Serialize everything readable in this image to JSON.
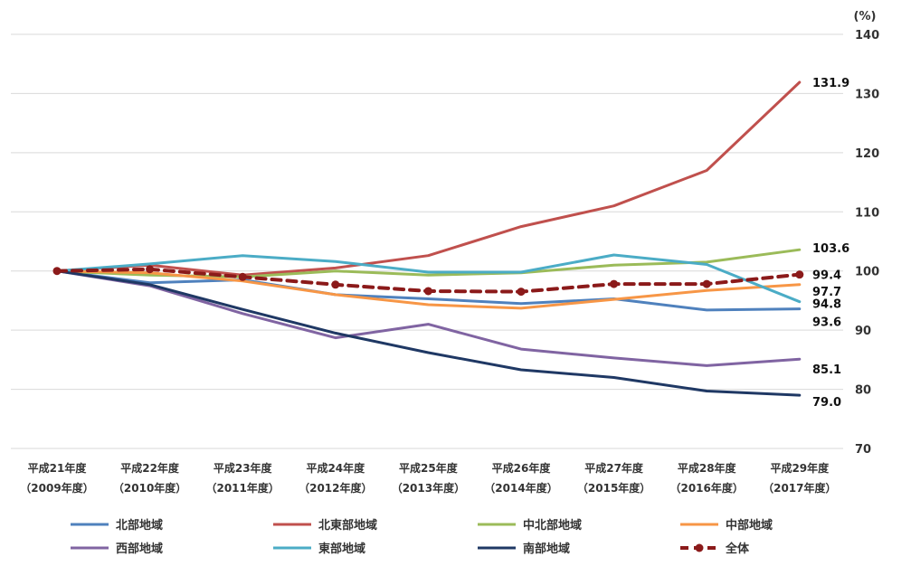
{
  "chart_data": {
    "type": "line",
    "y_unit": "(%)",
    "ylim": [
      70,
      140
    ],
    "yticks": [
      70,
      80,
      90,
      100,
      110,
      120,
      130,
      140
    ],
    "grid": true,
    "legend_position": "bottom",
    "categories": [
      {
        "line1": "平成21年度",
        "line2": "（2009年度）"
      },
      {
        "line1": "平成22年度",
        "line2": "（2010年度）"
      },
      {
        "line1": "平成23年度",
        "line2": "（2011年度）"
      },
      {
        "line1": "平成24年度",
        "line2": "（2012年度）"
      },
      {
        "line1": "平成25年度",
        "line2": "（2013年度）"
      },
      {
        "line1": "平成26年度",
        "line2": "（2014年度）"
      },
      {
        "line1": "平成27年度",
        "line2": "（2015年度）"
      },
      {
        "line1": "平成28年度",
        "line2": "（2016年度）"
      },
      {
        "line1": "平成29年度",
        "line2": "（2017年度）"
      }
    ],
    "series": [
      {
        "name": "北部地域",
        "color": "#4f81bd",
        "dashed": false,
        "markers": false,
        "values": [
          100,
          98.0,
          98.5,
          96.0,
          95.3,
          94.5,
          95.3,
          93.4,
          93.6
        ],
        "end_label": "93.6"
      },
      {
        "name": "北東部地域",
        "color": "#c0504d",
        "dashed": false,
        "markers": false,
        "values": [
          100,
          101.0,
          99.3,
          100.5,
          102.6,
          107.5,
          111.0,
          117.0,
          131.9
        ],
        "end_label": "131.9"
      },
      {
        "name": "中北部地域",
        "color": "#9bbb59",
        "dashed": false,
        "markers": false,
        "values": [
          100,
          99.3,
          99.0,
          100.0,
          99.3,
          99.7,
          101.0,
          101.5,
          103.6
        ],
        "end_label": "103.6"
      },
      {
        "name": "中部地域",
        "color": "#f79646",
        "dashed": false,
        "markers": false,
        "values": [
          100,
          99.7,
          98.3,
          96.0,
          94.3,
          93.7,
          95.2,
          96.7,
          97.7
        ],
        "end_label": "97.7"
      },
      {
        "name": "西部地域",
        "color": "#8064a2",
        "dashed": false,
        "markers": false,
        "values": [
          100,
          97.5,
          92.8,
          88.7,
          91.0,
          86.8,
          85.3,
          84.0,
          85.1
        ],
        "end_label": "85.1"
      },
      {
        "name": "東部地域",
        "color": "#4bacc6",
        "dashed": false,
        "markers": false,
        "values": [
          100,
          101.2,
          102.6,
          101.6,
          99.8,
          99.8,
          102.7,
          101.1,
          94.8
        ],
        "end_label": "94.8"
      },
      {
        "name": "南部地域",
        "color": "#1f3864",
        "dashed": false,
        "markers": false,
        "values": [
          100,
          97.7,
          93.5,
          89.5,
          86.2,
          83.3,
          82.0,
          79.7,
          79.0
        ],
        "end_label": "79.0"
      },
      {
        "name": "全体",
        "color": "#8b1a1a",
        "dashed": true,
        "markers": true,
        "values": [
          100,
          100.3,
          99.0,
          97.7,
          96.6,
          96.5,
          97.8,
          97.8,
          99.4
        ],
        "end_label": "99.4"
      }
    ]
  }
}
